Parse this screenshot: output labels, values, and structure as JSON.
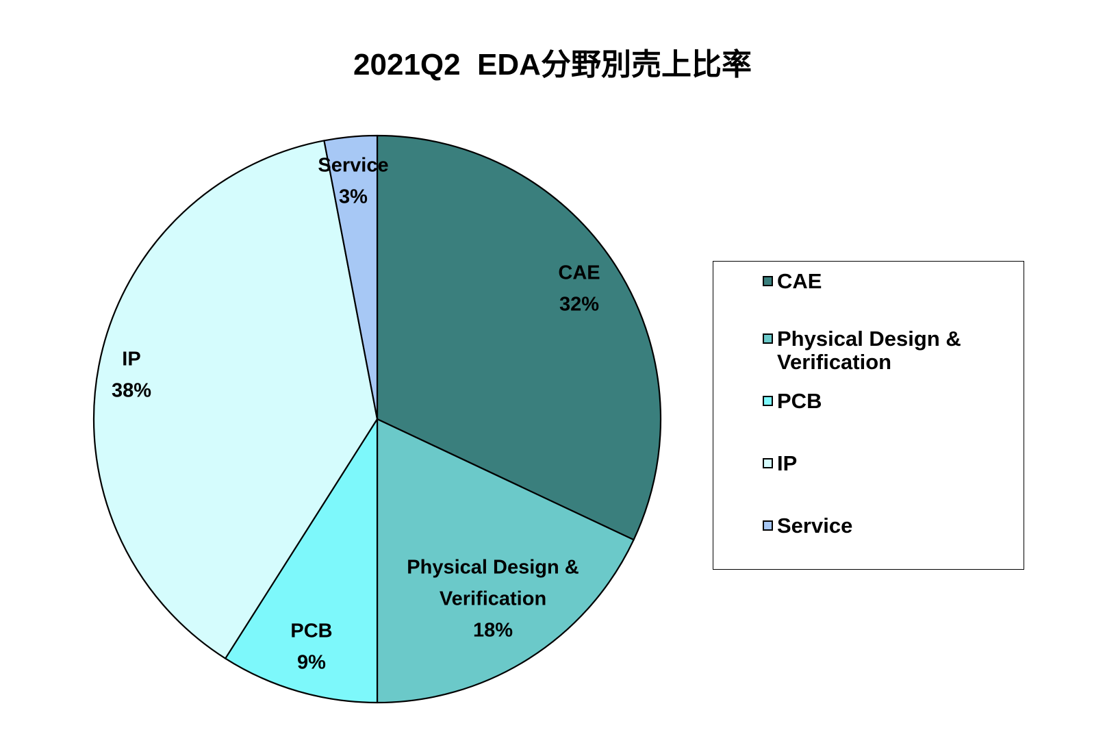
{
  "chart_data": {
    "type": "pie",
    "title": "2021Q2  EDA分野別売上比率",
    "categories": [
      "CAE",
      "Physical Design & Verification",
      "PCB",
      "IP",
      "Service"
    ],
    "values": [
      32,
      18,
      9,
      38,
      3
    ],
    "percent_labels": [
      "32%",
      "18%",
      "9%",
      "38%",
      "3%"
    ],
    "label_lines": [
      [
        "CAE"
      ],
      [
        "Physical Design &",
        "Verification"
      ],
      [
        "PCB"
      ],
      [
        "IP"
      ],
      [
        "Service"
      ]
    ],
    "colors": [
      "#3a7f7d",
      "#6bc9c9",
      "#7df8fb",
      "#d5fcfd",
      "#a7c8f5"
    ],
    "start_angle": "12 o'clock",
    "direction": "clockwise",
    "legend": {
      "position": "right",
      "items": [
        {
          "label": "CAE",
          "color": "#3a7f7d"
        },
        {
          "label": "Physical Design & Verification",
          "color": "#6bc9c9"
        },
        {
          "label": "PCB",
          "color": "#7df8fb"
        },
        {
          "label": "IP",
          "color": "#d5fcfd"
        },
        {
          "label": "Service",
          "color": "#a7c8f5"
        }
      ]
    }
  }
}
